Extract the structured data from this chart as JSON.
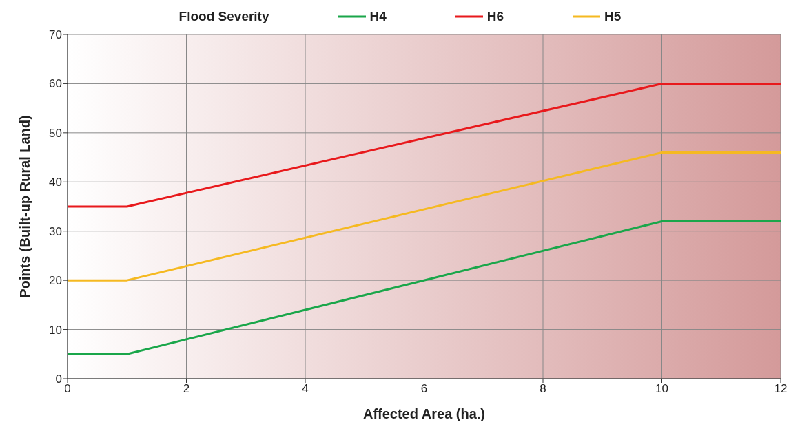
{
  "chart_data": {
    "type": "line",
    "legend_title": "Flood Severity",
    "xlabel": "Affected Area (ha.)",
    "ylabel": "Points (Built-up Rural Land)",
    "xlim": [
      0,
      12
    ],
    "xticks": [
      0,
      2,
      4,
      6,
      8,
      10,
      12
    ],
    "ylim": [
      0,
      70
    ],
    "yticks": [
      0,
      10,
      20,
      30,
      40,
      50,
      60,
      70
    ],
    "grid": true,
    "legend": "top",
    "marker": "none",
    "line_style": "solid",
    "series": [
      {
        "name": "H4",
        "color": "#1aa64a",
        "x": [
          0,
          1,
          10,
          12
        ],
        "values": [
          5,
          5,
          32,
          32
        ]
      },
      {
        "name": "H6",
        "color": "#e8191c",
        "x": [
          0,
          1,
          10,
          12
        ],
        "values": [
          35,
          35,
          60,
          60
        ]
      },
      {
        "name": "H5",
        "color": "#f5b921",
        "x": [
          0,
          1,
          10,
          12
        ],
        "values": [
          20,
          20,
          46,
          46
        ]
      }
    ]
  }
}
